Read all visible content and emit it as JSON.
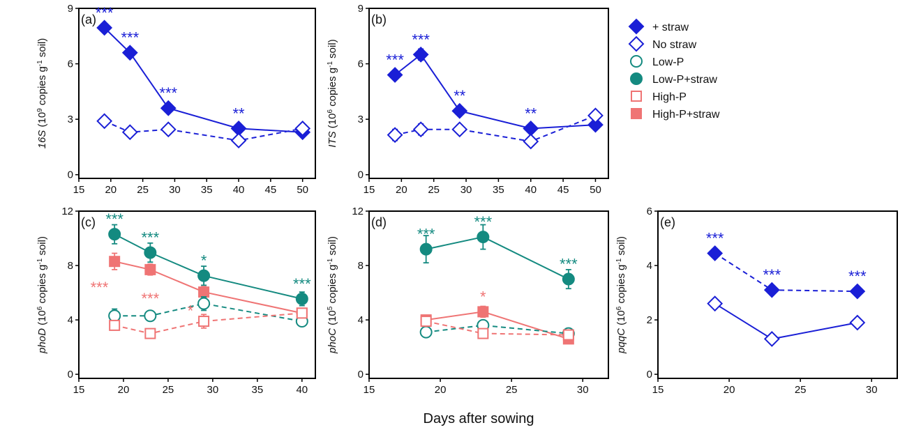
{
  "colors": {
    "blue": "#1a1fd6",
    "teal": "#148a80",
    "red": "#ef7474"
  },
  "xlabel": "Days after sowing",
  "legend": [
    {
      "label": "+ straw",
      "marker": "diamond",
      "filled": true,
      "color": "#1a1fd6"
    },
    {
      "label": "No straw",
      "marker": "diamond",
      "filled": false,
      "color": "#1a1fd6"
    },
    {
      "label": "Low-P",
      "marker": "circle",
      "filled": false,
      "color": "#148a80"
    },
    {
      "label": "Low-P+straw",
      "marker": "circle",
      "filled": true,
      "color": "#148a80"
    },
    {
      "label": "High-P",
      "marker": "square",
      "filled": false,
      "color": "#ef7474"
    },
    {
      "label": "High-P+straw",
      "marker": "square",
      "filled": true,
      "color": "#ef7474"
    }
  ],
  "chart_data": [
    {
      "id": "a",
      "tag": "(a)",
      "type": "line",
      "ylabel_gene": "16S",
      "ylabel_rest": " (10",
      "ylabel_exp": "9",
      "ylabel_tail": " copies g",
      "ylabel_unit_exp": "-1",
      "ylabel_end": " soil)",
      "xlim": [
        15,
        52
      ],
      "ylim": [
        -0.2,
        9
      ],
      "xticks": [
        15,
        20,
        25,
        30,
        35,
        40,
        45,
        50
      ],
      "yticks": [
        0,
        3,
        6,
        9
      ],
      "series": [
        {
          "name": "+ straw",
          "marker": "diamond",
          "filled": true,
          "color": "#1a1fd6",
          "dashed": false,
          "x": [
            19,
            23,
            29,
            40,
            50
          ],
          "y": [
            7.95,
            6.6,
            3.6,
            2.5,
            2.3
          ],
          "err": [
            0.15,
            0.15,
            0.15,
            0.15,
            0.1
          ]
        },
        {
          "name": "No straw",
          "marker": "diamond",
          "filled": false,
          "color": "#1a1fd6",
          "dashed": true,
          "x": [
            19,
            23,
            29,
            40,
            50
          ],
          "y": [
            2.9,
            2.3,
            2.45,
            1.85,
            2.5
          ],
          "err": [
            0.2,
            0.15,
            0.2,
            0.2,
            0.15
          ]
        }
      ],
      "annotations": [
        {
          "text": "***",
          "x": 19,
          "y": 7.95,
          "color": "#1a1fd6"
        },
        {
          "text": "***",
          "x": 23,
          "y": 6.6,
          "color": "#1a1fd6"
        },
        {
          "text": "***",
          "x": 29,
          "y": 3.6,
          "color": "#1a1fd6"
        },
        {
          "text": "**",
          "x": 40,
          "y": 2.5,
          "color": "#1a1fd6"
        }
      ]
    },
    {
      "id": "b",
      "tag": "(b)",
      "type": "line",
      "ylabel_gene": "ITS",
      "ylabel_rest": " (10",
      "ylabel_exp": "6",
      "ylabel_tail": " copies g",
      "ylabel_unit_exp": "-1",
      "ylabel_end": " soil)",
      "xlim": [
        15,
        52
      ],
      "ylim": [
        -0.2,
        9
      ],
      "xticks": [
        15,
        20,
        25,
        30,
        35,
        40,
        45,
        50
      ],
      "yticks": [
        0,
        3,
        6,
        9
      ],
      "series": [
        {
          "name": "+ straw",
          "marker": "diamond",
          "filled": true,
          "color": "#1a1fd6",
          "dashed": false,
          "x": [
            19,
            23,
            29,
            40,
            50
          ],
          "y": [
            5.4,
            6.5,
            3.45,
            2.5,
            2.7
          ],
          "err": [
            0.15,
            0.3,
            0.2,
            0.15,
            0.1
          ]
        },
        {
          "name": "No straw",
          "marker": "diamond",
          "filled": false,
          "color": "#1a1fd6",
          "dashed": true,
          "x": [
            19,
            23,
            29,
            40,
            50
          ],
          "y": [
            2.15,
            2.45,
            2.45,
            1.8,
            3.2
          ],
          "err": [
            0.3,
            0.3,
            0.25,
            0.2,
            0.2
          ]
        }
      ],
      "annotations": [
        {
          "text": "***",
          "x": 19,
          "y": 5.4,
          "color": "#1a1fd6"
        },
        {
          "text": "***",
          "x": 23,
          "y": 6.5,
          "color": "#1a1fd6"
        },
        {
          "text": "**",
          "x": 29,
          "y": 3.45,
          "color": "#1a1fd6"
        },
        {
          "text": "**",
          "x": 40,
          "y": 2.5,
          "color": "#1a1fd6"
        }
      ]
    },
    {
      "id": "c",
      "tag": "(c)",
      "type": "line",
      "ylabel_gene": "phoD",
      "ylabel_rest": " (10",
      "ylabel_exp": "6",
      "ylabel_tail": " copies g",
      "ylabel_unit_exp": "-1",
      "ylabel_end": " soil)",
      "xlim": [
        15,
        41.5
      ],
      "ylim": [
        -0.3,
        12
      ],
      "xticks": [
        15,
        20,
        25,
        30,
        35,
        40
      ],
      "yticks": [
        0,
        4,
        8,
        12
      ],
      "series": [
        {
          "name": "Low-P+straw",
          "marker": "circle",
          "filled": true,
          "color": "#148a80",
          "dashed": false,
          "x": [
            19,
            23,
            29,
            40
          ],
          "y": [
            10.3,
            8.95,
            7.25,
            5.55
          ],
          "err": [
            0.7,
            0.7,
            0.7,
            0.5
          ]
        },
        {
          "name": "High-P+straw",
          "marker": "square",
          "filled": true,
          "color": "#ef7474",
          "dashed": false,
          "x": [
            19,
            23,
            29,
            40
          ],
          "y": [
            8.3,
            7.7,
            6.05,
            4.5
          ],
          "err": [
            0.6,
            0.4,
            0.4,
            0.3
          ]
        },
        {
          "name": "Low-P",
          "marker": "circle",
          "filled": false,
          "color": "#148a80",
          "dashed": true,
          "x": [
            19,
            23,
            29,
            40
          ],
          "y": [
            4.3,
            4.3,
            5.2,
            3.9
          ],
          "err": [
            0.5,
            0.2,
            0.5,
            0.3
          ]
        },
        {
          "name": "High-P",
          "marker": "square",
          "filled": false,
          "color": "#ef7474",
          "dashed": true,
          "x": [
            19,
            23,
            29,
            40
          ],
          "y": [
            3.6,
            3.0,
            3.9,
            4.5
          ],
          "err": [
            0.3,
            0.2,
            0.5,
            0.3
          ]
        }
      ],
      "annotations": [
        {
          "text": "***",
          "x": 19,
          "y": 10.3,
          "color": "#148a80"
        },
        {
          "text": "***",
          "x": 23,
          "y": 8.95,
          "color": "#148a80"
        },
        {
          "text": "*",
          "x": 29,
          "y": 7.25,
          "color": "#148a80"
        },
        {
          "text": "***",
          "x": 40,
          "y": 5.55,
          "color": "#148a80"
        },
        {
          "text": "***",
          "x": 17.3,
          "y": 6.3,
          "color": "#ef7474",
          "free": true
        },
        {
          "text": "***",
          "x": 23,
          "y": 5.5,
          "color": "#ef7474",
          "free": true
        },
        {
          "text": "*",
          "x": 27.5,
          "y": 4.6,
          "color": "#ef7474",
          "free": true
        }
      ]
    },
    {
      "id": "d",
      "tag": "(d)",
      "type": "line",
      "ylabel_gene": "phoC",
      "ylabel_rest": " (10",
      "ylabel_exp": "5",
      "ylabel_tail": " copies g",
      "ylabel_unit_exp": "-1",
      "ylabel_end": " soil)",
      "xlim": [
        15,
        31.8
      ],
      "ylim": [
        -0.3,
        12
      ],
      "xticks": [
        15,
        20,
        25,
        30
      ],
      "yticks": [
        0,
        4,
        8,
        12
      ],
      "series": [
        {
          "name": "Low-P+straw",
          "marker": "circle",
          "filled": true,
          "color": "#148a80",
          "dashed": false,
          "x": [
            19,
            23,
            29
          ],
          "y": [
            9.2,
            10.1,
            7.0
          ],
          "err": [
            1.0,
            0.9,
            0.7
          ]
        },
        {
          "name": "High-P+straw",
          "marker": "square",
          "filled": true,
          "color": "#ef7474",
          "dashed": false,
          "x": [
            19,
            23,
            29
          ],
          "y": [
            4.0,
            4.6,
            2.6
          ],
          "err": [
            0.3,
            0.4,
            0.2
          ]
        },
        {
          "name": "Low-P",
          "marker": "circle",
          "filled": false,
          "color": "#148a80",
          "dashed": true,
          "x": [
            19,
            23,
            29
          ],
          "y": [
            3.1,
            3.6,
            3.0
          ],
          "err": [
            0.3,
            0.3,
            0.3
          ]
        },
        {
          "name": "High-P",
          "marker": "square",
          "filled": false,
          "color": "#ef7474",
          "dashed": true,
          "x": [
            19,
            23,
            29
          ],
          "y": [
            3.9,
            3.0,
            2.9
          ],
          "err": [
            0.2,
            0.3,
            0.2
          ]
        }
      ],
      "annotations": [
        {
          "text": "***",
          "x": 19,
          "y": 9.2,
          "color": "#148a80"
        },
        {
          "text": "***",
          "x": 23,
          "y": 10.1,
          "color": "#148a80"
        },
        {
          "text": "***",
          "x": 29,
          "y": 7.0,
          "color": "#148a80"
        },
        {
          "text": "*",
          "x": 23,
          "y": 4.6,
          "color": "#ef7474"
        }
      ]
    },
    {
      "id": "e",
      "tag": "(e)",
      "type": "line",
      "ylabel_gene": "pqqC",
      "ylabel_rest": " (10",
      "ylabel_exp": "6",
      "ylabel_tail": " copies g",
      "ylabel_unit_exp": "-1",
      "ylabel_end": " soil)",
      "xlim": [
        15,
        31.8
      ],
      "ylim": [
        -0.15,
        6
      ],
      "xticks": [
        15,
        20,
        25,
        30
      ],
      "yticks": [
        0,
        2,
        4,
        6
      ],
      "series": [
        {
          "name": "+ straw",
          "marker": "diamond",
          "filled": true,
          "color": "#1a1fd6",
          "dashed": true,
          "x": [
            19,
            23,
            29
          ],
          "y": [
            4.45,
            3.1,
            3.05
          ],
          "err": [
            0.1,
            0.15,
            0.05
          ]
        },
        {
          "name": "No straw",
          "marker": "diamond",
          "filled": false,
          "color": "#1a1fd6",
          "dashed": false,
          "x": [
            19,
            23,
            29
          ],
          "y": [
            2.6,
            1.3,
            1.9
          ],
          "err": [
            0.08,
            0.05,
            0.1
          ]
        }
      ],
      "annotations": [
        {
          "text": "***",
          "x": 19,
          "y": 4.45,
          "color": "#1a1fd6"
        },
        {
          "text": "***",
          "x": 23,
          "y": 3.1,
          "color": "#1a1fd6"
        },
        {
          "text": "***",
          "x": 29,
          "y": 3.05,
          "color": "#1a1fd6"
        }
      ]
    }
  ]
}
